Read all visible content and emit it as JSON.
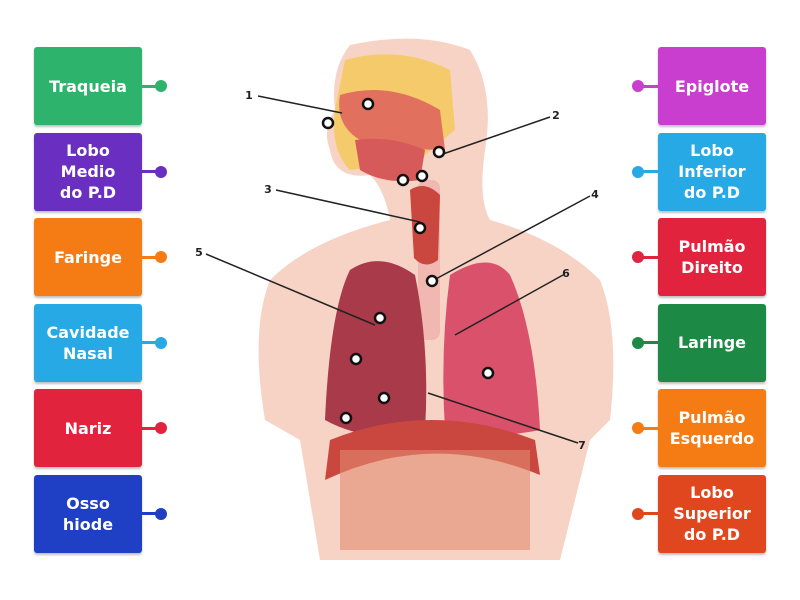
{
  "left_tiles": [
    {
      "text": "Traqueia",
      "color": "#2db36b"
    },
    {
      "text": "Lobo\nMedio\ndo P.D",
      "color": "#6a2fc0"
    },
    {
      "text": "Faringe",
      "color": "#f57c14"
    },
    {
      "text": "Cavidade\nNasal",
      "color": "#27a9e6"
    },
    {
      "text": "Nariz",
      "color": "#e2233e"
    },
    {
      "text": "Osso\nhiode",
      "color": "#1f3fc4"
    }
  ],
  "right_tiles": [
    {
      "text": "Epiglote",
      "color": "#c93ecf"
    },
    {
      "text": "Lobo\nInferior\ndo P.D",
      "color": "#27a9e6"
    },
    {
      "text": "Pulmão\nDireito",
      "color": "#e2233e"
    },
    {
      "text": "Laringe",
      "color": "#1c8a45"
    },
    {
      "text": "Pulmão\nEsquerdo",
      "color": "#f57c14"
    },
    {
      "text": "Lobo\nSuperior\ndo P.D",
      "color": "#e0471f"
    }
  ],
  "markers": [
    "1",
    "2",
    "3",
    "4",
    "5",
    "6",
    "7"
  ]
}
